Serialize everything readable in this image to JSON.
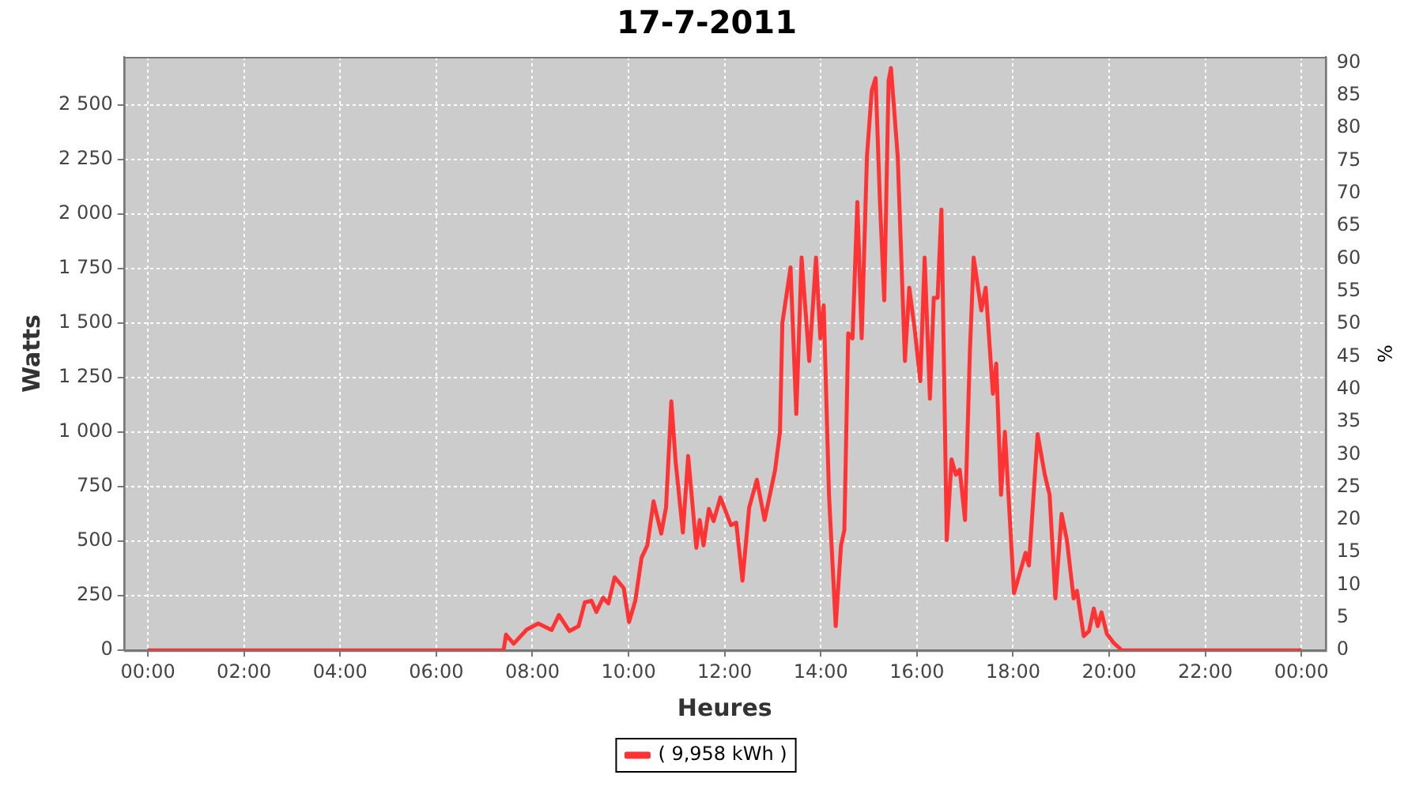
{
  "chart_data": {
    "type": "line",
    "title": "17-7-2011",
    "xlabel": "Heures",
    "ylabel": "Watts",
    "y2label": "%",
    "x": [
      0,
      7.4,
      7.45,
      7.61,
      7.88,
      8.12,
      8.4,
      8.55,
      8.77,
      8.96,
      9.09,
      9.23,
      9.33,
      9.47,
      9.58,
      9.71,
      9.9,
      10.01,
      10.14,
      10.27,
      10.39,
      10.52,
      10.68,
      10.78,
      10.89,
      10.98,
      11.13,
      11.24,
      11.41,
      11.48,
      11.56,
      11.67,
      11.77,
      11.91,
      12.13,
      12.24,
      12.37,
      12.51,
      12.67,
      12.83,
      13.05,
      13.15,
      13.2,
      13.37,
      13.49,
      13.6,
      13.76,
      13.9,
      13.99,
      14.06,
      14.17,
      14.31,
      14.42,
      14.49,
      14.57,
      14.66,
      14.76,
      14.85,
      14.96,
      15.06,
      15.14,
      15.23,
      15.32,
      15.41,
      15.46,
      15.6,
      15.75,
      15.84,
      15.95,
      16.07,
      16.16,
      16.27,
      16.35,
      16.43,
      16.51,
      16.62,
      16.72,
      16.81,
      16.89,
      17.0,
      17.1,
      17.18,
      17.34,
      17.43,
      17.58,
      17.65,
      17.75,
      17.83,
      18.02,
      18.26,
      18.33,
      18.51,
      18.66,
      18.76,
      18.88,
      19.01,
      19.12,
      19.26,
      19.33,
      19.47,
      19.58,
      19.68,
      19.76,
      19.84,
      19.95,
      20.09,
      20.23,
      20.25,
      24
    ],
    "series": [
      {
        "name": "( 9,958 kWh )",
        "color": "#ff3333",
        "values": [
          0,
          0,
          72,
          30,
          95,
          123,
          93,
          162,
          88,
          111,
          220,
          227,
          176,
          241,
          215,
          335,
          285,
          130,
          227,
          424,
          481,
          683,
          535,
          655,
          1141,
          863,
          540,
          891,
          470,
          597,
          481,
          648,
          592,
          701,
          574,
          585,
          319,
          655,
          782,
          597,
          828,
          1002,
          1500,
          1755,
          1083,
          1800,
          1326,
          1800,
          1430,
          1581,
          713,
          111,
          481,
          551,
          1453,
          1430,
          2055,
          1430,
          2264,
          2565,
          2623,
          2055,
          1604,
          2611,
          2669,
          2264,
          1326,
          1662,
          1477,
          1234,
          1800,
          1153,
          1616,
          1616,
          2020,
          505,
          875,
          805,
          828,
          597,
          1361,
          1800,
          1558,
          1662,
          1176,
          1314,
          713,
          1002,
          262,
          447,
          389,
          991,
          805,
          713,
          238,
          625,
          505,
          238,
          273,
          65,
          88,
          192,
          111,
          174,
          76,
          35,
          7,
          0,
          0
        ]
      }
    ],
    "xlim": [
      -0.5,
      24.5
    ],
    "xticks": [
      {
        "value": 0,
        "label": "00:00"
      },
      {
        "value": 2,
        "label": "02:00"
      },
      {
        "value": 4,
        "label": "04:00"
      },
      {
        "value": 6,
        "label": "06:00"
      },
      {
        "value": 8,
        "label": "08:00"
      },
      {
        "value": 10,
        "label": "10:00"
      },
      {
        "value": 12,
        "label": "12:00"
      },
      {
        "value": 14,
        "label": "14:00"
      },
      {
        "value": 16,
        "label": "16:00"
      },
      {
        "value": 18,
        "label": "18:00"
      },
      {
        "value": 20,
        "label": "20:00"
      },
      {
        "value": 22,
        "label": "22:00"
      },
      {
        "value": 24,
        "label": "00:00"
      }
    ],
    "ylim": [
      0,
      2720
    ],
    "yticks": [
      0,
      250,
      500,
      750,
      {
        "value": 1000,
        "label": "1 000"
      },
      {
        "value": 1250,
        "label": "1 250"
      },
      {
        "value": 1500,
        "label": "1 500"
      },
      {
        "value": 1750,
        "label": "1 750"
      },
      {
        "value": 2000,
        "label": "2 000"
      },
      {
        "value": 2250,
        "label": "2 250"
      },
      {
        "value": 2500,
        "label": "2 500"
      }
    ],
    "y2lim": [
      0,
      90.9
    ],
    "y2ticks": [
      0,
      5,
      10,
      15,
      20,
      25,
      30,
      35,
      40,
      45,
      50,
      55,
      60,
      65,
      70,
      75,
      80,
      85,
      90
    ],
    "grid": true,
    "legend": "bottom",
    "marker": "none",
    "line_style": "solid"
  }
}
